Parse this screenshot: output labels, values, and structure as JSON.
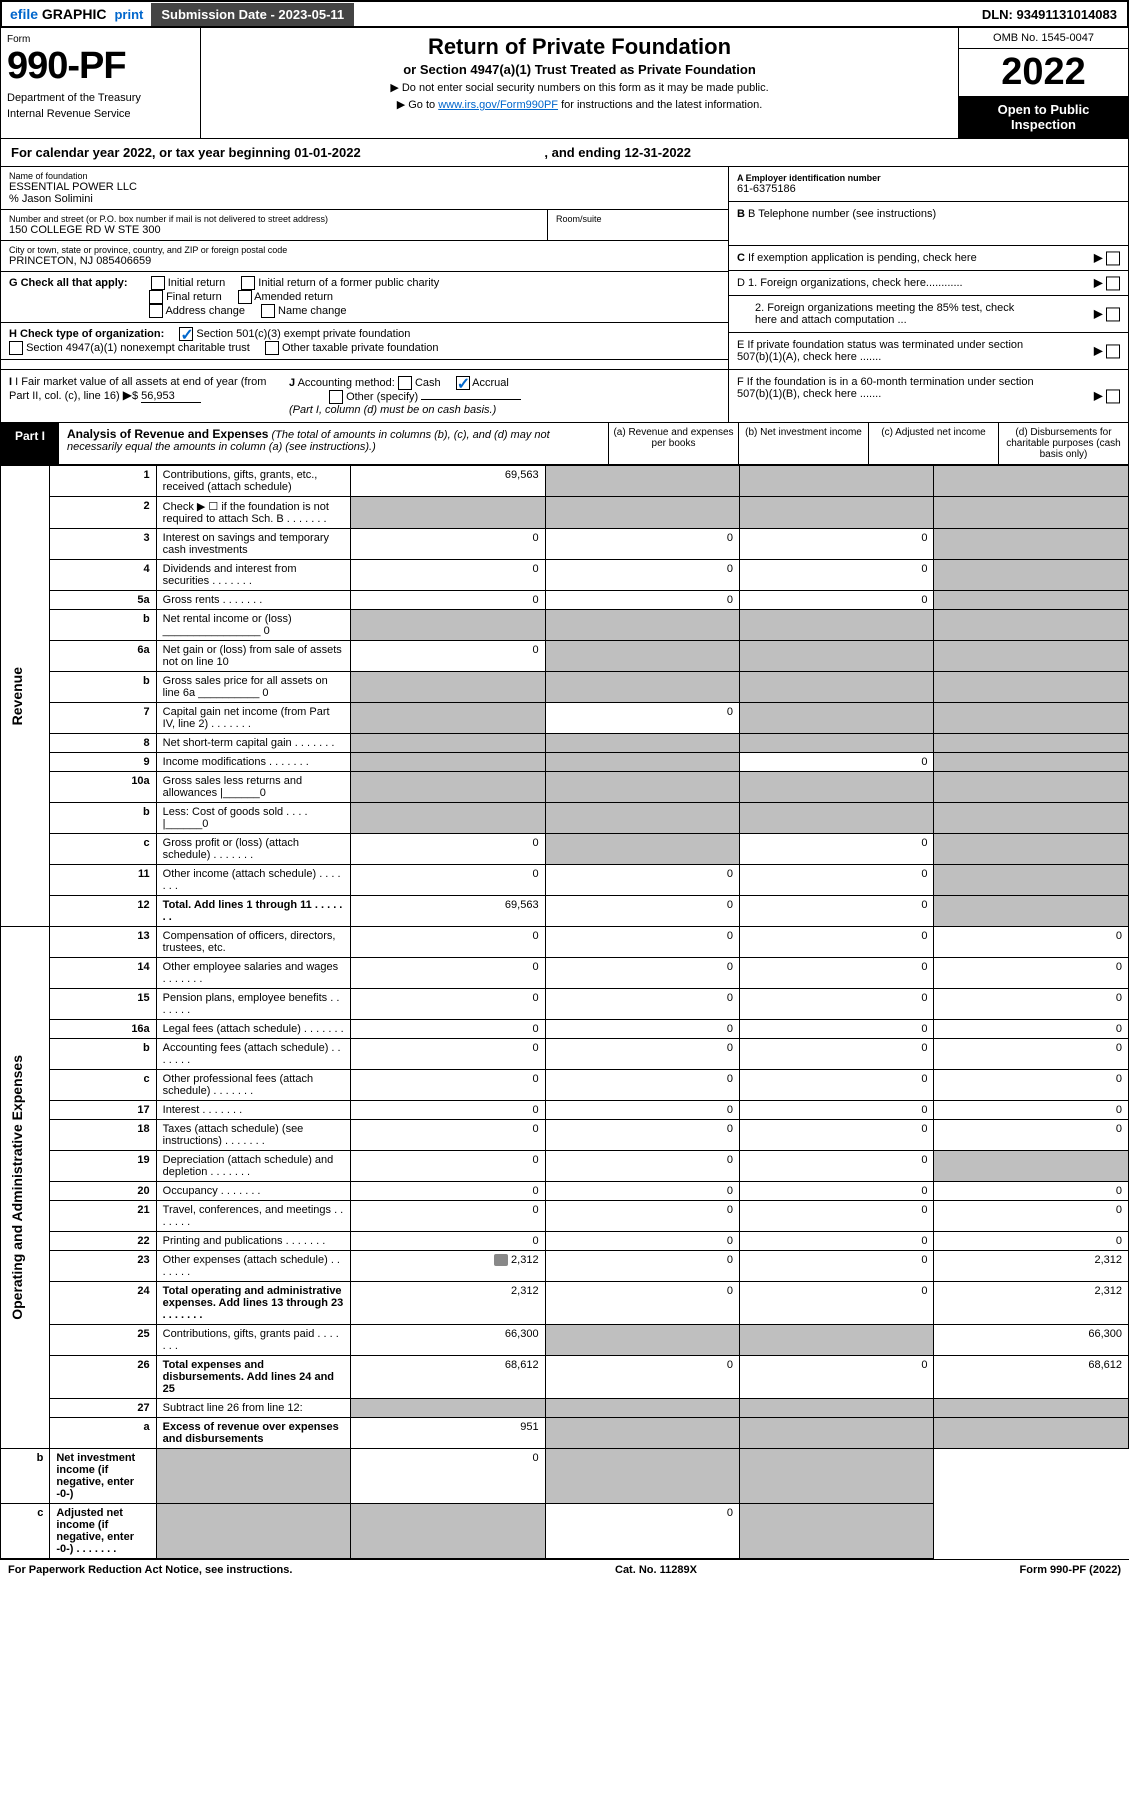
{
  "topbar": {
    "efile": "efile",
    "graphic": "GRAPHIC",
    "print": "print",
    "submission": "Submission Date - 2023-05-11",
    "dln": "DLN: 93491131014083"
  },
  "header": {
    "form_label": "Form",
    "form_num": "990-PF",
    "dept1": "Department of the Treasury",
    "dept2": "Internal Revenue Service",
    "title": "Return of Private Foundation",
    "subtitle": "or Section 4947(a)(1) Trust Treated as Private Foundation",
    "note1": "▶ Do not enter social security numbers on this form as it may be made public.",
    "note2_pre": "▶ Go to ",
    "note2_link": "www.irs.gov/Form990PF",
    "note2_post": " for instructions and the latest information.",
    "omb": "OMB No. 1545-0047",
    "year": "2022",
    "open": "Open to Public Inspection"
  },
  "cal": "For calendar year 2022, or tax year beginning 01-01-2022",
  "cal_end": ", and ending 12-31-2022",
  "org": {
    "name_label": "Name of foundation",
    "name": "ESSENTIAL POWER LLC",
    "care": "% Jason Solimini",
    "addr_label": "Number and street (or P.O. box number if mail is not delivered to street address)",
    "addr": "150 COLLEGE RD W STE 300",
    "room_label": "Room/suite",
    "city_label": "City or town, state or province, country, and ZIP or foreign postal code",
    "city": "PRINCETON, NJ  085406659",
    "ein_label": "A Employer identification number",
    "ein": "61-6375186",
    "tel_label": "B Telephone number (see instructions)",
    "c_label": "C If exemption application is pending, check here"
  },
  "g": {
    "label": "G Check all that apply:",
    "items": [
      "Initial return",
      "Initial return of a former public charity",
      "Final return",
      "Amended return",
      "Address change",
      "Name change"
    ]
  },
  "h": {
    "label": "H Check type of organization:",
    "opt1": "Section 501(c)(3) exempt private foundation",
    "opt2": "Section 4947(a)(1) nonexempt charitable trust",
    "opt3": "Other taxable private foundation"
  },
  "d": {
    "d1": "D 1. Foreign organizations, check here............",
    "d2": "2. Foreign organizations meeting the 85% test, check here and attach computation ...",
    "e": "E  If private foundation status was terminated under section 507(b)(1)(A), check here .......",
    "f": "F  If the foundation is in a 60-month termination under section 507(b)(1)(B), check here ......."
  },
  "i": {
    "label": "I Fair market value of all assets at end of year (from Part II, col. (c), line 16)",
    "val": "56,953"
  },
  "j": {
    "label": "J Accounting method:",
    "cash": "Cash",
    "accrual": "Accrual",
    "other": "Other (specify)",
    "note": "(Part I, column (d) must be on cash basis.)"
  },
  "part1": {
    "tab": "Part I",
    "title": "Analysis of Revenue and Expenses",
    "note": "(The total of amounts in columns (b), (c), and (d) may not necessarily equal the amounts in column (a) (see instructions).)",
    "cols": {
      "a": "(a) Revenue and expenses per books",
      "b": "(b) Net investment income",
      "c": "(c) Adjusted net income",
      "d": "(d) Disbursements for charitable purposes (cash basis only)"
    }
  },
  "sides": {
    "rev": "Revenue",
    "exp": "Operating and Administrative Expenses"
  },
  "rows": [
    {
      "n": "1",
      "t": "Contributions, gifts, grants, etc., received (attach schedule)",
      "a": "69,563",
      "b": "",
      "c": "",
      "d": "",
      "aS": 0,
      "bS": 1,
      "cS": 1,
      "dS": 1
    },
    {
      "n": "2",
      "t": "Check ▶ ☐ if the foundation is not required to attach Sch. B",
      "dots": 1,
      "a": "",
      "b": "",
      "c": "",
      "d": "",
      "aS": 1,
      "bS": 1,
      "cS": 1,
      "dS": 1
    },
    {
      "n": "3",
      "t": "Interest on savings and temporary cash investments",
      "a": "0",
      "b": "0",
      "c": "0",
      "d": "",
      "dS": 1
    },
    {
      "n": "4",
      "t": "Dividends and interest from securities",
      "dots": 1,
      "a": "0",
      "b": "0",
      "c": "0",
      "d": "",
      "dS": 1
    },
    {
      "n": "5a",
      "t": "Gross rents",
      "dots": 1,
      "a": "0",
      "b": "0",
      "c": "0",
      "d": "",
      "dS": 1
    },
    {
      "n": "b",
      "t": "Net rental income or (loss) ________________ 0",
      "a": "",
      "b": "",
      "c": "",
      "d": "",
      "aS": 1,
      "bS": 1,
      "cS": 1,
      "dS": 1
    },
    {
      "n": "6a",
      "t": "Net gain or (loss) from sale of assets not on line 10",
      "a": "0",
      "b": "",
      "c": "",
      "d": "",
      "bS": 1,
      "cS": 1,
      "dS": 1
    },
    {
      "n": "b",
      "t": "Gross sales price for all assets on line 6a __________ 0",
      "a": "",
      "b": "",
      "c": "",
      "d": "",
      "aS": 1,
      "bS": 1,
      "cS": 1,
      "dS": 1
    },
    {
      "n": "7",
      "t": "Capital gain net income (from Part IV, line 2)",
      "dots": 1,
      "a": "",
      "b": "0",
      "c": "",
      "d": "",
      "aS": 1,
      "cS": 1,
      "dS": 1
    },
    {
      "n": "8",
      "t": "Net short-term capital gain",
      "dots": 1,
      "a": "",
      "b": "",
      "c": "",
      "d": "",
      "aS": 1,
      "bS": 1,
      "cS": 1,
      "dS": 1
    },
    {
      "n": "9",
      "t": "Income modifications",
      "dots": 1,
      "a": "",
      "b": "",
      "c": "0",
      "d": "",
      "aS": 1,
      "bS": 1,
      "dS": 1
    },
    {
      "n": "10a",
      "t": "Gross sales less returns and allowances   |______0",
      "a": "",
      "b": "",
      "c": "",
      "d": "",
      "aS": 1,
      "bS": 1,
      "cS": 1,
      "dS": 1
    },
    {
      "n": "b",
      "t": "Less: Cost of goods sold   . . . .   |______0",
      "a": "",
      "b": "",
      "c": "",
      "d": "",
      "aS": 1,
      "bS": 1,
      "cS": 1,
      "dS": 1
    },
    {
      "n": "c",
      "t": "Gross profit or (loss) (attach schedule)",
      "dots": 1,
      "a": "0",
      "b": "",
      "c": "0",
      "d": "",
      "bS": 1,
      "dS": 1
    },
    {
      "n": "11",
      "t": "Other income (attach schedule)",
      "dots": 1,
      "a": "0",
      "b": "0",
      "c": "0",
      "d": "",
      "dS": 1
    },
    {
      "n": "12",
      "t": "Total. Add lines 1 through 11",
      "dots": 1,
      "bold": 1,
      "a": "69,563",
      "b": "0",
      "c": "0",
      "d": "",
      "dS": 1
    },
    {
      "n": "13",
      "t": "Compensation of officers, directors, trustees, etc.",
      "a": "0",
      "b": "0",
      "c": "0",
      "d": "0"
    },
    {
      "n": "14",
      "t": "Other employee salaries and wages",
      "dots": 1,
      "a": "0",
      "b": "0",
      "c": "0",
      "d": "0"
    },
    {
      "n": "15",
      "t": "Pension plans, employee benefits",
      "dots": 1,
      "a": "0",
      "b": "0",
      "c": "0",
      "d": "0"
    },
    {
      "n": "16a",
      "t": "Legal fees (attach schedule)",
      "dots": 1,
      "a": "0",
      "b": "0",
      "c": "0",
      "d": "0"
    },
    {
      "n": "b",
      "t": "Accounting fees (attach schedule)",
      "dots": 1,
      "a": "0",
      "b": "0",
      "c": "0",
      "d": "0"
    },
    {
      "n": "c",
      "t": "Other professional fees (attach schedule)",
      "dots": 1,
      "a": "0",
      "b": "0",
      "c": "0",
      "d": "0"
    },
    {
      "n": "17",
      "t": "Interest",
      "dots": 1,
      "a": "0",
      "b": "0",
      "c": "0",
      "d": "0"
    },
    {
      "n": "18",
      "t": "Taxes (attach schedule) (see instructions)",
      "dots": 1,
      "a": "0",
      "b": "0",
      "c": "0",
      "d": "0"
    },
    {
      "n": "19",
      "t": "Depreciation (attach schedule) and depletion",
      "dots": 1,
      "a": "0",
      "b": "0",
      "c": "0",
      "d": "",
      "dS": 1
    },
    {
      "n": "20",
      "t": "Occupancy",
      "dots": 1,
      "a": "0",
      "b": "0",
      "c": "0",
      "d": "0"
    },
    {
      "n": "21",
      "t": "Travel, conferences, and meetings",
      "dots": 1,
      "a": "0",
      "b": "0",
      "c": "0",
      "d": "0"
    },
    {
      "n": "22",
      "t": "Printing and publications",
      "dots": 1,
      "a": "0",
      "b": "0",
      "c": "0",
      "d": "0"
    },
    {
      "n": "23",
      "t": "Other expenses (attach schedule)",
      "dots": 1,
      "icon": 1,
      "a": "2,312",
      "b": "0",
      "c": "0",
      "d": "2,312"
    },
    {
      "n": "24",
      "t": "Total operating and administrative expenses. Add lines 13 through 23",
      "dots": 1,
      "bold": 1,
      "a": "2,312",
      "b": "0",
      "c": "0",
      "d": "2,312"
    },
    {
      "n": "25",
      "t": "Contributions, gifts, grants paid",
      "dots": 1,
      "a": "66,300",
      "b": "",
      "c": "",
      "d": "66,300",
      "bS": 1,
      "cS": 1
    },
    {
      "n": "26",
      "t": "Total expenses and disbursements. Add lines 24 and 25",
      "bold": 1,
      "a": "68,612",
      "b": "0",
      "c": "0",
      "d": "68,612"
    },
    {
      "n": "27",
      "t": "Subtract line 26 from line 12:",
      "a": "",
      "b": "",
      "c": "",
      "d": "",
      "aS": 1,
      "bS": 1,
      "cS": 1,
      "dS": 1
    },
    {
      "n": "a",
      "t": "Excess of revenue over expenses and disbursements",
      "bold": 1,
      "a": "951",
      "b": "",
      "c": "",
      "d": "",
      "bS": 1,
      "cS": 1,
      "dS": 1
    },
    {
      "n": "b",
      "t": "Net investment income (if negative, enter -0-)",
      "bold": 1,
      "a": "",
      "b": "0",
      "c": "",
      "d": "",
      "aS": 1,
      "cS": 1,
      "dS": 1
    },
    {
      "n": "c",
      "t": "Adjusted net income (if negative, enter -0-)",
      "dots": 1,
      "bold": 1,
      "a": "",
      "b": "",
      "c": "0",
      "d": "",
      "aS": 1,
      "bS": 1,
      "dS": 1
    }
  ],
  "footer": {
    "left": "For Paperwork Reduction Act Notice, see instructions.",
    "mid": "Cat. No. 11289X",
    "right": "Form 990-PF (2022)"
  }
}
